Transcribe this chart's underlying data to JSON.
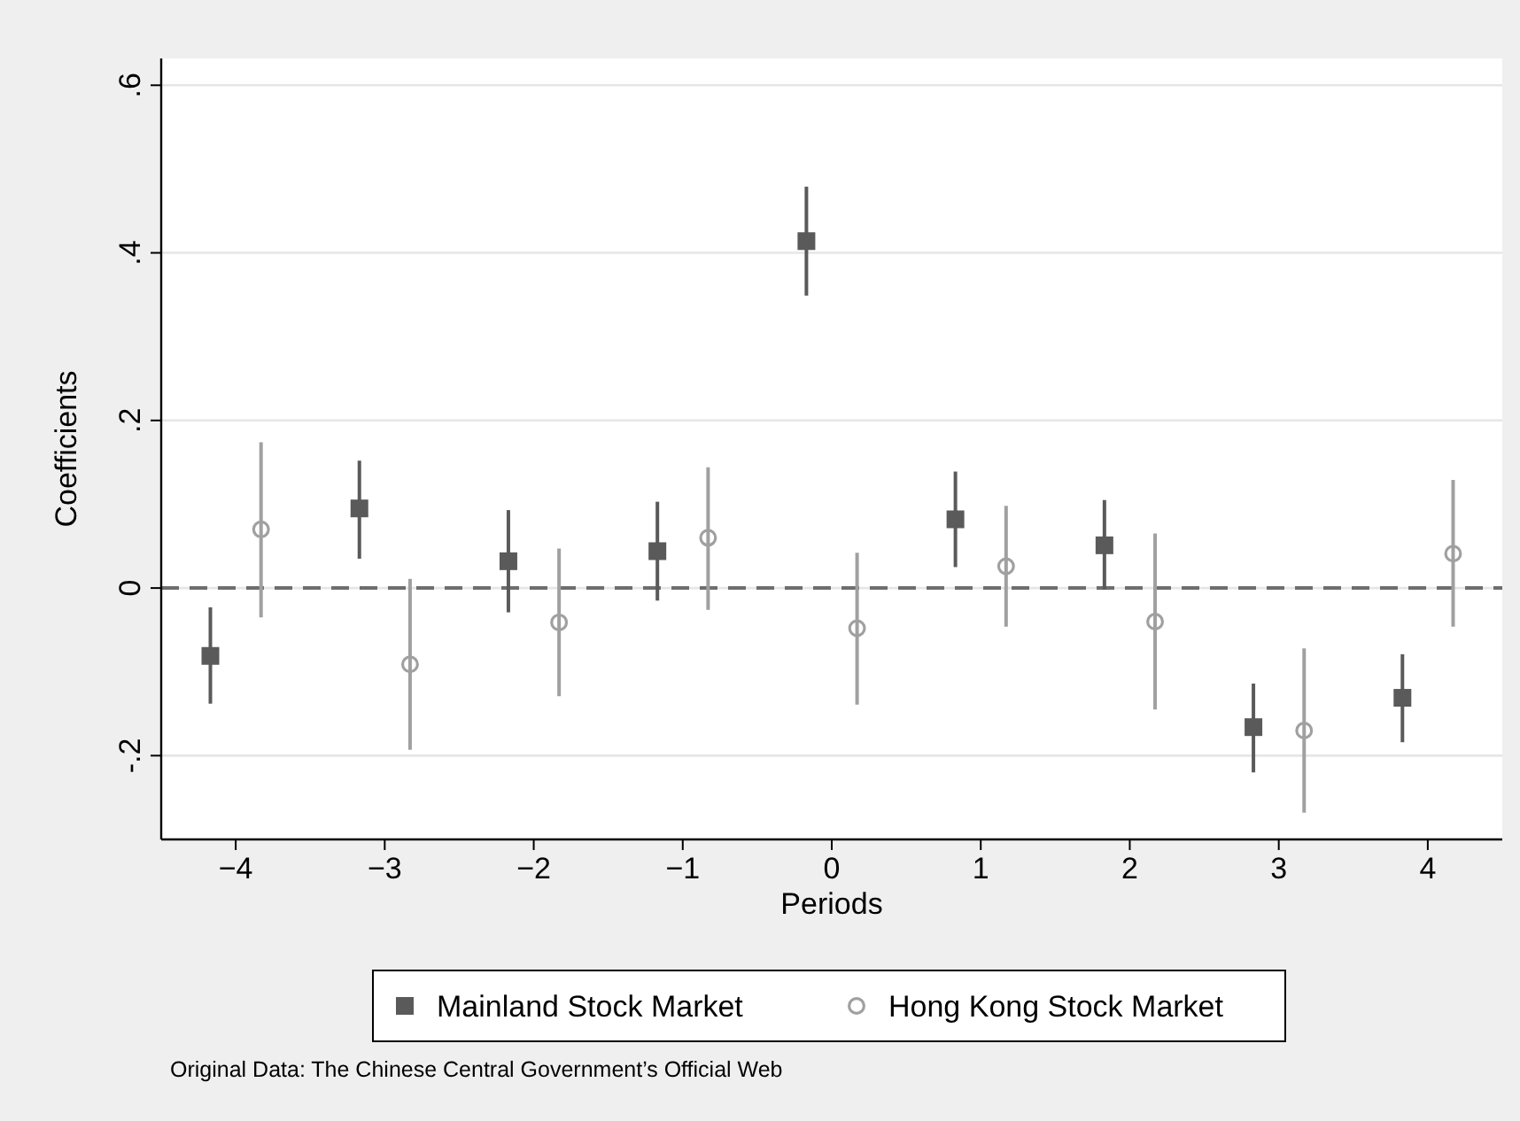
{
  "chart_data": {
    "type": "scatter",
    "xlabel": "Periods",
    "ylabel": "Coefficients",
    "xlim": [
      -4.5,
      4.5
    ],
    "ylim": [
      -0.3,
      0.632
    ],
    "xticks": [
      {
        "value": -4,
        "label": "−4"
      },
      {
        "value": -3,
        "label": "−3"
      },
      {
        "value": -2,
        "label": "−2"
      },
      {
        "value": -1,
        "label": "−1"
      },
      0,
      1,
      2,
      3,
      4
    ],
    "yticks": [
      {
        "value": -0.2,
        "label": "-.2"
      },
      0,
      {
        "value": 0.2,
        "label": ".2"
      },
      {
        "value": 0.4,
        "label": ".4"
      },
      {
        "value": 0.6,
        "label": ".6"
      }
    ],
    "grid": "y",
    "legend": "bottom",
    "ref_lines": [
      {
        "axis": "y",
        "value": 0,
        "color": "#6e6e6e",
        "line_style": "dashed"
      }
    ],
    "series": [
      {
        "name": "Mainland Stock Market",
        "color": "#5a5a5a",
        "marker": "square",
        "x": [
          -4.17,
          -3.17,
          -2.17,
          -1.17,
          -0.17,
          0.83,
          1.83,
          2.83,
          3.83
        ],
        "values": [
          -0.081,
          0.095,
          0.032,
          0.044,
          0.414,
          0.082,
          0.051,
          -0.166,
          -0.131
        ],
        "errors": [
          [
            -0.138,
            -0.023
          ],
          [
            0.035,
            0.152
          ],
          [
            -0.029,
            0.093
          ],
          [
            -0.015,
            0.103
          ],
          [
            0.349,
            0.479
          ],
          [
            0.025,
            0.139
          ],
          [
            -0.002,
            0.105
          ],
          [
            -0.22,
            -0.114
          ],
          [
            -0.184,
            -0.079
          ]
        ]
      },
      {
        "name": "Hong Kong Stock Market",
        "color": "#a0a0a0",
        "marker": "circle",
        "x": [
          -3.83,
          -2.83,
          -1.83,
          -0.83,
          0.17,
          1.17,
          2.17,
          3.17,
          4.17
        ],
        "values": [
          0.07,
          -0.091,
          -0.041,
          0.06,
          -0.048,
          0.026,
          -0.04,
          -0.17,
          0.041
        ],
        "errors": [
          [
            -0.035,
            0.174
          ],
          [
            -0.193,
            0.011
          ],
          [
            -0.129,
            0.047
          ],
          [
            -0.026,
            0.144
          ],
          [
            -0.139,
            0.042
          ],
          [
            -0.046,
            0.098
          ],
          [
            -0.145,
            0.065
          ],
          [
            -0.268,
            -0.072
          ],
          [
            -0.046,
            0.129
          ]
        ]
      }
    ],
    "annotations": [
      "Original Data: The Chinese Central Government’s Official Web"
    ]
  }
}
